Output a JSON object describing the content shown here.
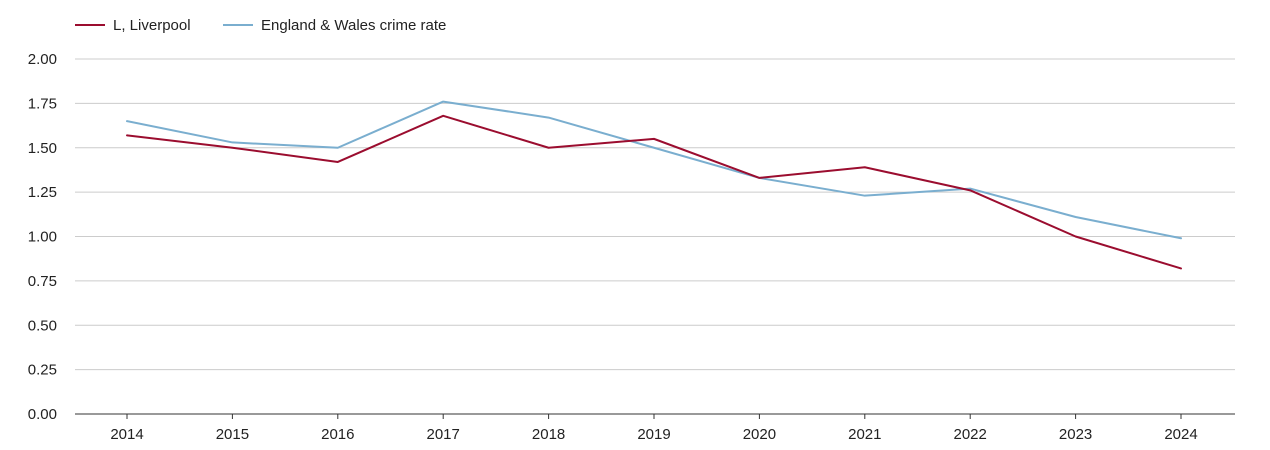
{
  "chart_data": {
    "type": "line",
    "title": "",
    "xlabel": "",
    "ylabel": "",
    "categories": [
      "2014",
      "2015",
      "2016",
      "2017",
      "2018",
      "2019",
      "2020",
      "2021",
      "2022",
      "2023",
      "2024"
    ],
    "ylim": [
      0,
      2
    ],
    "yticks": [
      "0.00",
      "0.25",
      "0.50",
      "0.75",
      "1.00",
      "1.25",
      "1.50",
      "1.75",
      "2.00"
    ],
    "grid": true,
    "legend": "top-left",
    "series": [
      {
        "name": "L, Liverpool",
        "color": "#9b0d2f",
        "values": [
          1.57,
          1.5,
          1.42,
          1.68,
          1.5,
          1.55,
          1.33,
          1.39,
          1.26,
          1.0,
          0.82
        ]
      },
      {
        "name": "England & Wales crime rate",
        "color": "#7aaecf",
        "values": [
          1.65,
          1.53,
          1.5,
          1.76,
          1.67,
          1.5,
          1.33,
          1.23,
          1.27,
          1.11,
          0.99
        ]
      }
    ]
  }
}
